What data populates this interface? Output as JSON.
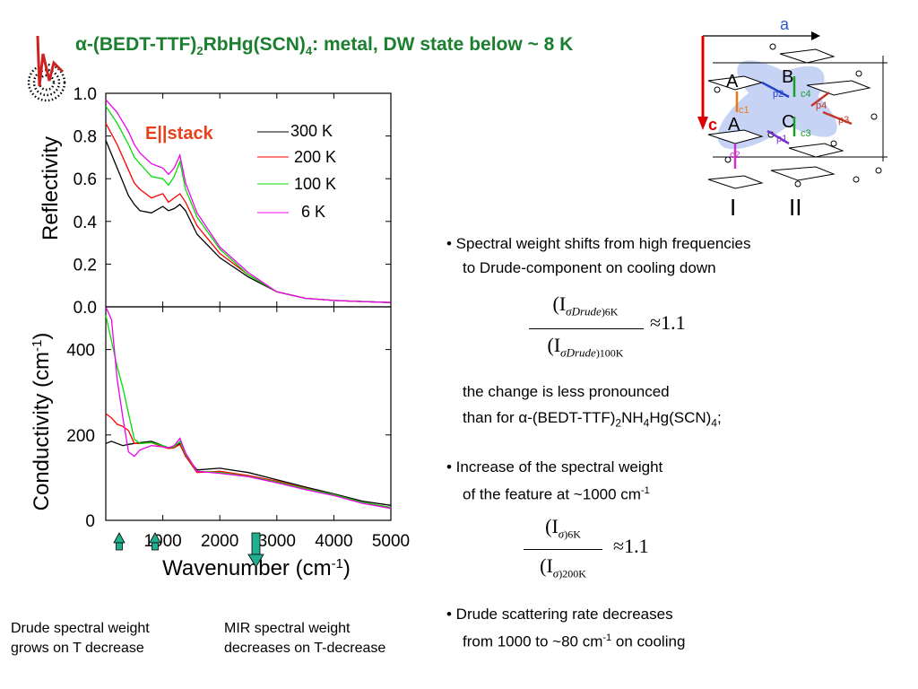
{
  "slide": {
    "title_prefix": "α-(BEDT-TTF)",
    "title_sub1": "2",
    "title_mid": "RbHg(SCN)",
    "title_sub2": "4",
    "title_suffix": ": metal, DW state below ~ 8 K"
  },
  "bullets": {
    "b1_line1": "• Spectral weight shifts from high frequencies",
    "b1_line2": "to Drude-component on cooling down",
    "formula1_num": "(I",
    "formula1_num_sub": "σDrude",
    "formula1_num_temp": ")6K",
    "formula1_den": "(I",
    "formula1_den_sub": "σDrude",
    "formula1_den_temp": ")100K",
    "formula1_rhs": "≈1.1",
    "b1_note_line1": "the change is less pronounced",
    "b1_note_line2_a": "than for α-(BEDT-TTF)",
    "b1_note_sub1": "2",
    "b1_note_line2_b": "NH",
    "b1_note_sub2": "4",
    "b1_note_line2_c": "Hg(SCN)",
    "b1_note_sub3": "4",
    "b1_note_line2_d": ";",
    "b2_line1": "• Increase of the spectral weight",
    "b2_line2": "of the feature at ~1000 cm",
    "b2_sup": "-1",
    "formula2_num": "(I",
    "formula2_num_sub": "σ",
    "formula2_num_temp": ")6K",
    "formula2_den": "(I",
    "formula2_den_sub": "σ",
    "formula2_den_temp": ")200K",
    "formula2_rhs": "≈1.1",
    "b3_line1": "•  Drude scattering rate decreases",
    "b3_line2a": "from 1000 to ~80 cm",
    "b3_sup": "-1",
    "b3_line2b": " on cooling"
  },
  "captions": {
    "left_line1": "Drude spectral weight",
    "left_line2": "grows on T decrease",
    "right_line1": "MIR spectral weight",
    "right_line2": "decreases on T-decrease"
  },
  "structure": {
    "axis_a": "a",
    "axis_c": "c",
    "label_A1": "A",
    "label_A2": "A",
    "label_B": "B",
    "label_C": "C",
    "label_c4": "c4",
    "label_c3": "c3",
    "label_p2": "p2",
    "label_p4": "p4",
    "label_p3": "p3",
    "label_p1": "p1",
    "label_c1": "c1",
    "label_c2": "c2",
    "label_I": "I",
    "label_II": "II"
  },
  "colors": {
    "t300": "#000000",
    "t200": "#ff0000",
    "t100": "#00dd00",
    "t6": "#ee00ee",
    "title": "#1a7f2e",
    "stack": "#e8401c",
    "arrow": "#20b090"
  },
  "chart_data": [
    {
      "type": "line",
      "title": "",
      "annotation": "E||stack",
      "xlabel": "",
      "ylabel": "Reflectivity",
      "xlim": [
        0,
        5000
      ],
      "ylim": [
        0.0,
        1.0
      ],
      "y_ticks": [
        "1.0",
        "0.8",
        "0.6",
        "0.4",
        "0.2",
        "0.0"
      ],
      "legend": "top-right",
      "x": [
        0,
        200,
        400,
        500,
        600,
        800,
        1000,
        1100,
        1200,
        1300,
        1400,
        1600,
        2000,
        2500,
        3000,
        3500,
        4000,
        4500,
        5000
      ],
      "series": [
        {
          "name": "300 K",
          "values": [
            0.78,
            0.65,
            0.52,
            0.48,
            0.45,
            0.44,
            0.47,
            0.45,
            0.46,
            0.48,
            0.45,
            0.34,
            0.23,
            0.14,
            0.07,
            0.04,
            0.03,
            0.025,
            0.02
          ]
        },
        {
          "name": "200 K",
          "values": [
            0.86,
            0.76,
            0.64,
            0.58,
            0.55,
            0.51,
            0.53,
            0.49,
            0.51,
            0.53,
            0.49,
            0.38,
            0.25,
            0.15,
            0.07,
            0.04,
            0.03,
            0.025,
            0.02
          ]
        },
        {
          "name": "100 K",
          "values": [
            0.94,
            0.86,
            0.76,
            0.7,
            0.67,
            0.61,
            0.6,
            0.57,
            0.61,
            0.68,
            0.55,
            0.42,
            0.27,
            0.15,
            0.07,
            0.04,
            0.03,
            0.025,
            0.02
          ]
        },
        {
          "name": "6 K",
          "values": [
            0.97,
            0.91,
            0.82,
            0.76,
            0.72,
            0.67,
            0.65,
            0.62,
            0.65,
            0.71,
            0.58,
            0.44,
            0.28,
            0.16,
            0.07,
            0.04,
            0.03,
            0.025,
            0.02
          ]
        }
      ]
    },
    {
      "type": "line",
      "title": "",
      "xlabel": "Wavenumber (cm-1)",
      "ylabel": "Conductivity (cm-1)",
      "xlim": [
        0,
        5000
      ],
      "ylim": [
        0,
        500
      ],
      "x_ticks": [
        "1000",
        "2000",
        "3000",
        "4000",
        "5000"
      ],
      "y_ticks": [
        "400",
        "200",
        "0"
      ],
      "x": [
        0,
        100,
        200,
        300,
        400,
        500,
        600,
        800,
        1000,
        1100,
        1200,
        1300,
        1400,
        1600,
        2000,
        2500,
        3000,
        3500,
        4000,
        4500,
        5000
      ],
      "series": [
        {
          "name": "300 K",
          "values": [
            180,
            185,
            180,
            175,
            178,
            180,
            182,
            185,
            175,
            170,
            172,
            180,
            150,
            118,
            122,
            112,
            95,
            78,
            62,
            45,
            35
          ]
        },
        {
          "name": "200 K",
          "values": [
            250,
            240,
            225,
            220,
            210,
            180,
            180,
            182,
            172,
            168,
            170,
            178,
            150,
            112,
            115,
            105,
            92,
            75,
            60,
            42,
            30
          ]
        },
        {
          "name": "100 K",
          "values": [
            480,
            420,
            360,
            310,
            250,
            190,
            180,
            182,
            175,
            170,
            172,
            185,
            155,
            115,
            112,
            103,
            90,
            74,
            60,
            42,
            30
          ]
        },
        {
          "name": "6 K",
          "values": [
            500,
            470,
            330,
            240,
            160,
            150,
            165,
            175,
            172,
            170,
            175,
            192,
            158,
            115,
            110,
            102,
            88,
            72,
            58,
            40,
            28
          ]
        }
      ]
    }
  ]
}
